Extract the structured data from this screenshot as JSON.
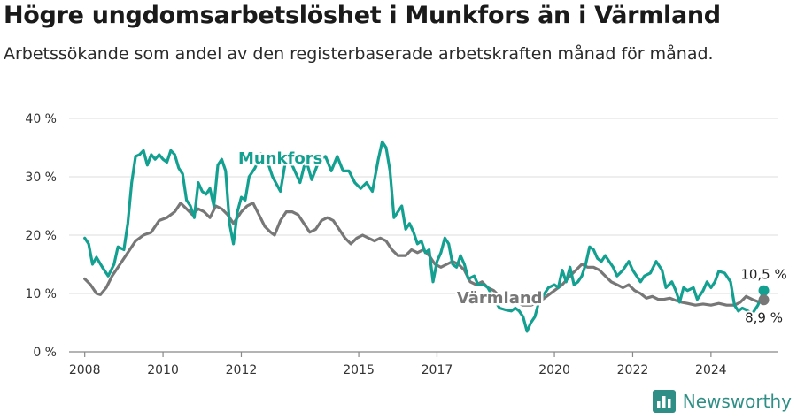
{
  "title": "Högre ungdomsarbetslöshet i Munkfors än i Värmland",
  "subtitle": "Arbetssökande som andel av den registerbaserade arbetskraften månad för månad.",
  "brand": {
    "name": "Newsworthy",
    "icon": "bar-chart-logo-icon"
  },
  "colors": {
    "munkfors": "#13a090",
    "varmland": "#777777",
    "grid": "#dddddd"
  },
  "chart_data": {
    "type": "line",
    "title": "Högre ungdomsarbetslöshet i Munkfors än i Värmland",
    "ylim": [
      0,
      40
    ],
    "xlim": [
      2007.6,
      2025.7
    ],
    "y_ticks": [
      0,
      10,
      20,
      30,
      40
    ],
    "y_tick_labels": [
      "0 %",
      "10 %",
      "20 %",
      "30 %",
      "40 %"
    ],
    "x_ticks": [
      2008,
      2010,
      2012,
      2015,
      2017,
      2020,
      2022,
      2024
    ],
    "x_tick_labels": [
      "2008",
      "2010",
      "2012",
      "2015",
      "2017",
      "2020",
      "2022",
      "2024"
    ],
    "grid": "horizontal",
    "legend": "direct labels",
    "series": [
      {
        "name": "Munkfors",
        "color": "#13a090",
        "points": [
          [
            2008.0,
            19.5
          ],
          [
            2008.1,
            18.5
          ],
          [
            2008.2,
            15.0
          ],
          [
            2008.3,
            16.2
          ],
          [
            2008.45,
            14.5
          ],
          [
            2008.6,
            13.0
          ],
          [
            2008.75,
            15.0
          ],
          [
            2008.85,
            18.0
          ],
          [
            2009.0,
            17.5
          ],
          [
            2009.1,
            22.0
          ],
          [
            2009.2,
            29.0
          ],
          [
            2009.3,
            33.5
          ],
          [
            2009.4,
            33.8
          ],
          [
            2009.5,
            34.5
          ],
          [
            2009.6,
            32.0
          ],
          [
            2009.7,
            33.8
          ],
          [
            2009.8,
            33.0
          ],
          [
            2009.9,
            33.8
          ],
          [
            2010.0,
            33.0
          ],
          [
            2010.1,
            32.5
          ],
          [
            2010.2,
            34.5
          ],
          [
            2010.3,
            33.8
          ],
          [
            2010.4,
            31.5
          ],
          [
            2010.5,
            30.5
          ],
          [
            2010.6,
            26.0
          ],
          [
            2010.7,
            25.0
          ],
          [
            2010.8,
            23.0
          ],
          [
            2010.9,
            29.0
          ],
          [
            2011.0,
            27.5
          ],
          [
            2011.1,
            27.0
          ],
          [
            2011.2,
            28.0
          ],
          [
            2011.3,
            25.0
          ],
          [
            2011.4,
            32.0
          ],
          [
            2011.5,
            33.0
          ],
          [
            2011.6,
            31.0
          ],
          [
            2011.7,
            22.0
          ],
          [
            2011.8,
            18.5
          ],
          [
            2011.9,
            24.0
          ],
          [
            2012.0,
            26.5
          ],
          [
            2012.1,
            26.0
          ],
          [
            2012.2,
            30.0
          ],
          [
            2012.35,
            31.5
          ],
          [
            2012.5,
            34.0
          ],
          [
            2012.65,
            33.0
          ],
          [
            2012.8,
            30.0
          ],
          [
            2013.0,
            27.5
          ],
          [
            2013.15,
            33.5
          ],
          [
            2013.3,
            32.0
          ],
          [
            2013.5,
            29.0
          ],
          [
            2013.65,
            33.0
          ],
          [
            2013.8,
            29.5
          ],
          [
            2014.0,
            33.0
          ],
          [
            2014.15,
            33.5
          ],
          [
            2014.3,
            31.0
          ],
          [
            2014.45,
            33.5
          ],
          [
            2014.6,
            31.0
          ],
          [
            2014.75,
            31.0
          ],
          [
            2014.9,
            29.0
          ],
          [
            2015.05,
            28.0
          ],
          [
            2015.2,
            29.0
          ],
          [
            2015.35,
            27.5
          ],
          [
            2015.5,
            33.0
          ],
          [
            2015.6,
            36.0
          ],
          [
            2015.7,
            35.0
          ],
          [
            2015.8,
            31.0
          ],
          [
            2015.9,
            23.0
          ],
          [
            2016.0,
            24.0
          ],
          [
            2016.1,
            25.0
          ],
          [
            2016.2,
            21.0
          ],
          [
            2016.3,
            22.0
          ],
          [
            2016.4,
            20.5
          ],
          [
            2016.5,
            18.5
          ],
          [
            2016.6,
            19.0
          ],
          [
            2016.7,
            17.0
          ],
          [
            2016.8,
            17.5
          ],
          [
            2016.9,
            12.0
          ],
          [
            2017.0,
            15.5
          ],
          [
            2017.1,
            17.0
          ],
          [
            2017.2,
            19.5
          ],
          [
            2017.3,
            18.5
          ],
          [
            2017.4,
            15.0
          ],
          [
            2017.5,
            14.5
          ],
          [
            2017.6,
            16.5
          ],
          [
            2017.7,
            15.0
          ],
          [
            2017.8,
            12.5
          ],
          [
            2017.95,
            13.0
          ],
          [
            2018.05,
            11.5
          ],
          [
            2018.2,
            11.5
          ],
          [
            2018.3,
            11.0
          ],
          [
            2018.5,
            8.5
          ],
          [
            2018.6,
            7.5
          ],
          [
            2018.75,
            7.2
          ],
          [
            2018.9,
            7.0
          ],
          [
            2019.0,
            7.5
          ],
          [
            2019.1,
            7.0
          ],
          [
            2019.2,
            6.0
          ],
          [
            2019.3,
            3.5
          ],
          [
            2019.4,
            5.0
          ],
          [
            2019.5,
            6.0
          ],
          [
            2019.6,
            8.5
          ],
          [
            2019.7,
            9.5
          ],
          [
            2019.85,
            11.0
          ],
          [
            2020.0,
            11.5
          ],
          [
            2020.1,
            11.0
          ],
          [
            2020.2,
            14.0
          ],
          [
            2020.3,
            12.0
          ],
          [
            2020.4,
            14.5
          ],
          [
            2020.5,
            11.5
          ],
          [
            2020.6,
            12.0
          ],
          [
            2020.7,
            13.0
          ],
          [
            2020.8,
            15.0
          ],
          [
            2020.9,
            18.0
          ],
          [
            2021.0,
            17.5
          ],
          [
            2021.1,
            16.0
          ],
          [
            2021.2,
            15.5
          ],
          [
            2021.3,
            16.5
          ],
          [
            2021.4,
            15.5
          ],
          [
            2021.5,
            14.5
          ],
          [
            2021.6,
            13.0
          ],
          [
            2021.75,
            14.0
          ],
          [
            2021.9,
            15.5
          ],
          [
            2022.0,
            14.0
          ],
          [
            2022.1,
            13.0
          ],
          [
            2022.2,
            12.0
          ],
          [
            2022.3,
            13.0
          ],
          [
            2022.45,
            13.5
          ],
          [
            2022.6,
            15.5
          ],
          [
            2022.75,
            14.0
          ],
          [
            2022.85,
            11.0
          ],
          [
            2023.0,
            12.0
          ],
          [
            2023.1,
            10.5
          ],
          [
            2023.2,
            8.5
          ],
          [
            2023.3,
            11.0
          ],
          [
            2023.4,
            10.5
          ],
          [
            2023.55,
            11.0
          ],
          [
            2023.65,
            9.0
          ],
          [
            2023.8,
            10.5
          ],
          [
            2023.9,
            12.0
          ],
          [
            2024.0,
            11.0
          ],
          [
            2024.1,
            12.0
          ],
          [
            2024.2,
            13.8
          ],
          [
            2024.35,
            13.5
          ],
          [
            2024.5,
            12.0
          ],
          [
            2024.6,
            8.0
          ],
          [
            2024.7,
            7.0
          ],
          [
            2024.8,
            7.5
          ],
          [
            2024.9,
            7.2
          ],
          [
            2025.05,
            6.5
          ],
          [
            2025.2,
            8.0
          ],
          [
            2025.35,
            10.5
          ]
        ]
      },
      {
        "name": "Värmland",
        "color": "#777777",
        "points": [
          [
            2008.0,
            12.5
          ],
          [
            2008.15,
            11.5
          ],
          [
            2008.3,
            10.0
          ],
          [
            2008.4,
            9.8
          ],
          [
            2008.55,
            11.0
          ],
          [
            2008.7,
            13.0
          ],
          [
            2008.9,
            15.0
          ],
          [
            2009.1,
            17.0
          ],
          [
            2009.3,
            19.0
          ],
          [
            2009.5,
            20.0
          ],
          [
            2009.7,
            20.5
          ],
          [
            2009.9,
            22.5
          ],
          [
            2010.1,
            23.0
          ],
          [
            2010.3,
            24.0
          ],
          [
            2010.45,
            25.5
          ],
          [
            2010.6,
            24.5
          ],
          [
            2010.75,
            23.5
          ],
          [
            2010.9,
            24.5
          ],
          [
            2011.05,
            24.0
          ],
          [
            2011.2,
            23.0
          ],
          [
            2011.35,
            25.0
          ],
          [
            2011.5,
            24.5
          ],
          [
            2011.65,
            23.5
          ],
          [
            2011.8,
            22.0
          ],
          [
            2011.9,
            23.0
          ],
          [
            2012.0,
            24.0
          ],
          [
            2012.15,
            25.0
          ],
          [
            2012.3,
            25.5
          ],
          [
            2012.45,
            23.5
          ],
          [
            2012.6,
            21.5
          ],
          [
            2012.75,
            20.5
          ],
          [
            2012.85,
            20.0
          ],
          [
            2013.0,
            22.5
          ],
          [
            2013.15,
            24.0
          ],
          [
            2013.3,
            24.0
          ],
          [
            2013.45,
            23.5
          ],
          [
            2013.6,
            22.0
          ],
          [
            2013.75,
            20.5
          ],
          [
            2013.9,
            21.0
          ],
          [
            2014.05,
            22.5
          ],
          [
            2014.2,
            23.0
          ],
          [
            2014.35,
            22.5
          ],
          [
            2014.5,
            21.0
          ],
          [
            2014.65,
            19.5
          ],
          [
            2014.8,
            18.5
          ],
          [
            2014.95,
            19.5
          ],
          [
            2015.1,
            20.0
          ],
          [
            2015.25,
            19.5
          ],
          [
            2015.4,
            19.0
          ],
          [
            2015.55,
            19.5
          ],
          [
            2015.7,
            19.0
          ],
          [
            2015.85,
            17.5
          ],
          [
            2016.0,
            16.5
          ],
          [
            2016.2,
            16.5
          ],
          [
            2016.35,
            17.5
          ],
          [
            2016.5,
            17.0
          ],
          [
            2016.65,
            17.5
          ],
          [
            2016.8,
            16.5
          ],
          [
            2016.95,
            15.0
          ],
          [
            2017.1,
            14.5
          ],
          [
            2017.25,
            15.0
          ],
          [
            2017.4,
            15.5
          ],
          [
            2017.55,
            15.0
          ],
          [
            2017.7,
            14.0
          ],
          [
            2017.85,
            12.0
          ],
          [
            2018.0,
            11.5
          ],
          [
            2018.15,
            12.0
          ],
          [
            2018.3,
            11.0
          ],
          [
            2018.45,
            10.5
          ],
          [
            2018.6,
            9.5
          ],
          [
            2018.8,
            9.0
          ],
          [
            2019.0,
            8.5
          ],
          [
            2019.2,
            8.0
          ],
          [
            2019.4,
            8.0
          ],
          [
            2019.6,
            8.5
          ],
          [
            2019.8,
            9.5
          ],
          [
            2020.0,
            10.5
          ],
          [
            2020.2,
            11.5
          ],
          [
            2020.4,
            13.0
          ],
          [
            2020.55,
            14.0
          ],
          [
            2020.7,
            15.0
          ],
          [
            2020.85,
            14.5
          ],
          [
            2021.0,
            14.5
          ],
          [
            2021.15,
            14.0
          ],
          [
            2021.3,
            13.0
          ],
          [
            2021.45,
            12.0
          ],
          [
            2021.6,
            11.5
          ],
          [
            2021.75,
            11.0
          ],
          [
            2021.9,
            11.5
          ],
          [
            2022.05,
            10.5
          ],
          [
            2022.2,
            10.0
          ],
          [
            2022.35,
            9.2
          ],
          [
            2022.5,
            9.5
          ],
          [
            2022.65,
            9.0
          ],
          [
            2022.8,
            9.0
          ],
          [
            2022.95,
            9.2
          ],
          [
            2023.1,
            8.8
          ],
          [
            2023.25,
            8.5
          ],
          [
            2023.4,
            8.3
          ],
          [
            2023.6,
            8.0
          ],
          [
            2023.8,
            8.2
          ],
          [
            2024.0,
            8.0
          ],
          [
            2024.2,
            8.3
          ],
          [
            2024.4,
            8.0
          ],
          [
            2024.6,
            8.0
          ],
          [
            2024.75,
            8.5
          ],
          [
            2024.9,
            9.5
          ],
          [
            2025.05,
            9.0
          ],
          [
            2025.2,
            8.6
          ],
          [
            2025.35,
            8.9
          ]
        ]
      }
    ],
    "series_labels": [
      {
        "text": "Munkfors",
        "series": "Munkfors",
        "at": [
          2013.0,
          32.3
        ]
      },
      {
        "text": "Värmland",
        "series": "Värmland",
        "at": [
          2018.6,
          8.3
        ]
      }
    ],
    "end_values": [
      {
        "series": "Munkfors",
        "value": 10.5,
        "text": "10,5 %"
      },
      {
        "series": "Värmland",
        "value": 8.9,
        "text": "8,9 %"
      }
    ]
  }
}
